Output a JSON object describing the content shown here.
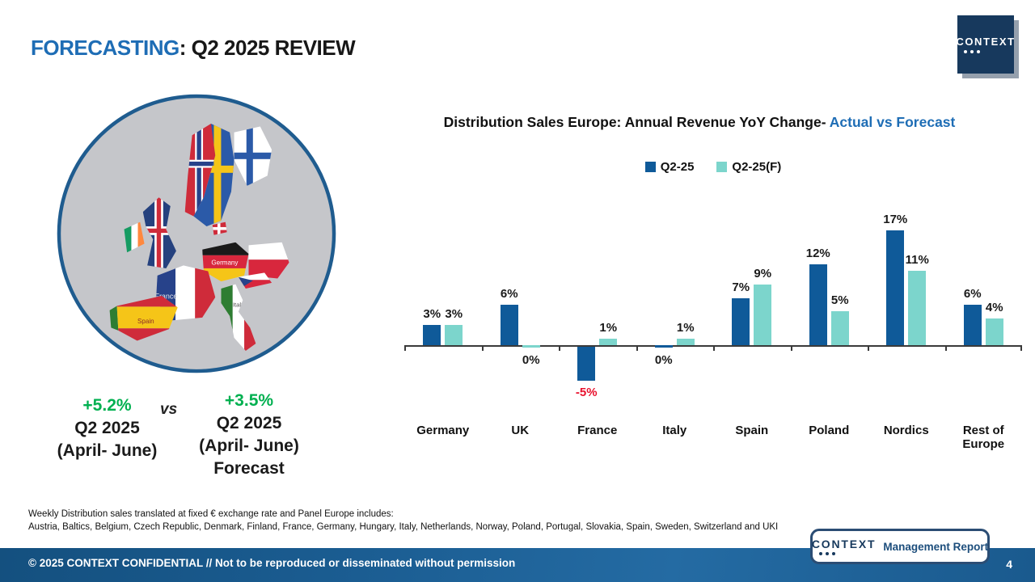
{
  "slide": {
    "title_accent": "FORECASTING",
    "title_rest": ": Q2 2025 REVIEW",
    "footnote_line1": "Weekly Distribution sales translated at fixed € exchange rate and Panel Europe includes:",
    "footnote_line2": "Austria, Baltics, Belgium, Czech Republic, Denmark, Finland, France, Germany, Hungary, Italy, Netherlands, Norway, Poland, Portugal, Slovakia, Spain, Sweden, Switzerland and UKI",
    "footer_confidential": "© 2025 CONTEXT CONFIDENTIAL // Not to be reproduced or disseminated without permission",
    "page_number": "4"
  },
  "logo": {
    "name": "CONTEXT",
    "report_label": "Management Report"
  },
  "summary": {
    "actual": {
      "value": "+5.2%",
      "line1": "Q2 2025",
      "line2": "(April- June)"
    },
    "vs_label": "vs",
    "forecast": {
      "value": "+3.5%",
      "line1": "Q2 2025",
      "line2": "(April- June)",
      "line3": "Forecast"
    }
  },
  "map": {
    "labels": [
      "Germany",
      "France",
      "Spain",
      "Italy"
    ]
  },
  "chart_data": {
    "type": "bar",
    "title_black": "Distribution Sales Europe: Annual Revenue YoY Change- ",
    "title_blue": "Actual vs Forecast",
    "categories": [
      "Germany",
      "UK",
      "France",
      "Italy",
      "Spain",
      "Poland",
      "Nordics",
      "Rest of Europe"
    ],
    "series": [
      {
        "name": "Q2-25",
        "color": "#0f5a99",
        "values": [
          3,
          6,
          -5,
          0,
          7,
          12,
          17,
          6
        ]
      },
      {
        "name": "Q2-25(F)",
        "color": "#7cd5cc",
        "values": [
          3,
          0,
          1,
          1,
          9,
          5,
          11,
          4
        ]
      }
    ],
    "unit": "%",
    "ylim": [
      -7,
      19
    ],
    "grid": false,
    "legend_position": "top",
    "negative_label_color": "#e8112d"
  }
}
